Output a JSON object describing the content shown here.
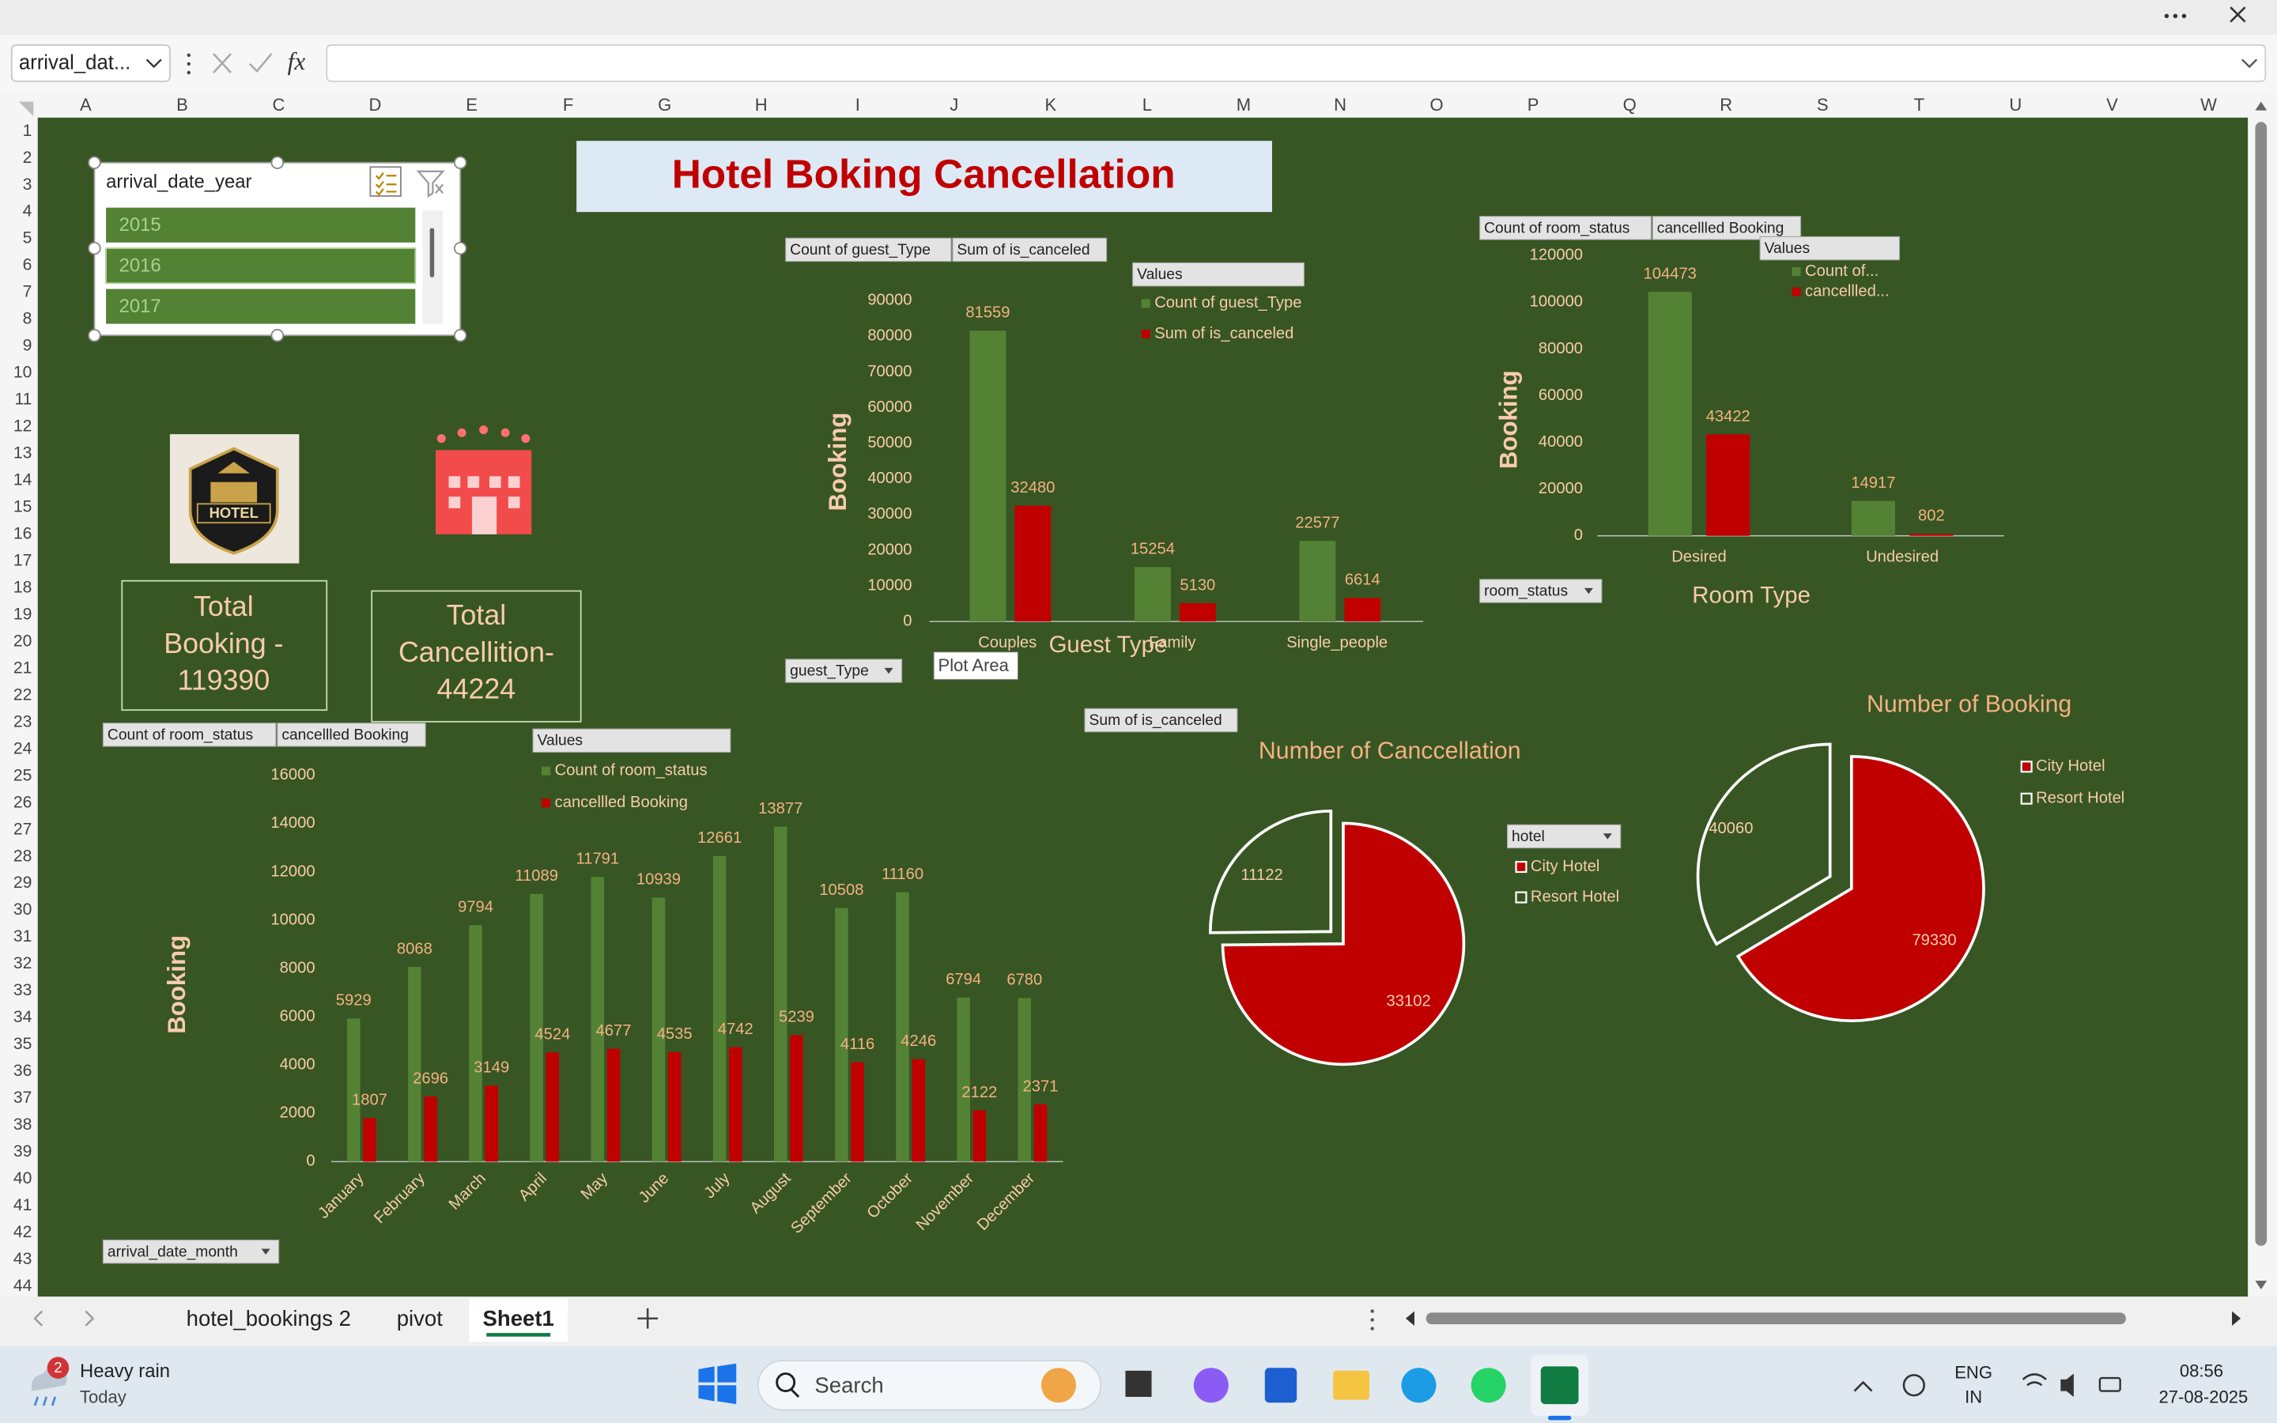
{
  "formula_bar": {
    "name_box": "arrival_dat...",
    "function_label": "fx"
  },
  "columns": [
    "A",
    "B",
    "C",
    "D",
    "E",
    "F",
    "G",
    "H",
    "I",
    "J",
    "K",
    "L",
    "M",
    "N",
    "O",
    "P",
    "Q",
    "R",
    "S",
    "T",
    "U",
    "V",
    "W"
  ],
  "rows": [
    1,
    2,
    3,
    4,
    5,
    6,
    7,
    8,
    9,
    10,
    11,
    12,
    13,
    14,
    15,
    16,
    17,
    18,
    19,
    20,
    21,
    22,
    23,
    24,
    25,
    26,
    27,
    28,
    29,
    30,
    31,
    32,
    33,
    34,
    35,
    36,
    37,
    38,
    39,
    40,
    41,
    42,
    43,
    44
  ],
  "slicer": {
    "title": "arrival_date_year",
    "items": [
      "2015",
      "2016",
      "2017"
    ]
  },
  "title": "Hotel Boking Cancellation",
  "logo_text": "HOTEL",
  "kpis": [
    {
      "lines": [
        "Total",
        "Booking -",
        "119390"
      ]
    },
    {
      "lines": [
        "Total",
        "Cancellition-",
        "44224"
      ]
    }
  ],
  "charts": [
    {
      "type": "bar",
      "field_buttons": [
        "Count of guest_Type",
        "Sum of is_canceled"
      ],
      "legend_title": "Values",
      "filter_button": "guest_Type",
      "tooltip": "Plot Area",
      "y_label": "Booking",
      "x_label": "Guest Type",
      "categories": [
        "Couples",
        "Family",
        "Single_people"
      ],
      "series": [
        {
          "name": "Count of guest_Type",
          "color": "#548235",
          "values": [
            81559,
            15254,
            22577
          ]
        },
        {
          "name": "Sum of is_canceled",
          "color": "#c00000",
          "values": [
            32480,
            5130,
            6614
          ]
        }
      ],
      "ylim": [
        0,
        90000
      ],
      "yticks": [
        0,
        10000,
        20000,
        30000,
        40000,
        50000,
        60000,
        70000,
        80000,
        90000
      ]
    },
    {
      "type": "bar",
      "field_buttons": [
        "Count of room_status",
        "cancellled Booking"
      ],
      "legend_title": "Values",
      "filter_button": "room_status",
      "y_label": "Booking",
      "x_label": "Room Type",
      "categories": [
        "Desired",
        "Undesired"
      ],
      "series": [
        {
          "name": "Count of...",
          "color": "#548235",
          "values": [
            104473,
            14917
          ]
        },
        {
          "name": "cancellled...",
          "color": "#c00000",
          "values": [
            43422,
            802
          ]
        }
      ],
      "ylim": [
        0,
        120000
      ],
      "yticks": [
        0,
        20000,
        40000,
        60000,
        80000,
        100000,
        120000
      ]
    },
    {
      "type": "bar",
      "field_buttons": [
        "Count of room_status",
        "cancellled Booking"
      ],
      "legend_title": "Values",
      "filter_button": "arrival_date_month",
      "y_label": "Booking",
      "categories": [
        "January",
        "February",
        "March",
        "April",
        "May",
        "June",
        "July",
        "August",
        "September",
        "October",
        "November",
        "December"
      ],
      "series": [
        {
          "name": "Count of room_status",
          "color": "#548235",
          "values": [
            5929,
            8068,
            9794,
            11089,
            11791,
            10939,
            12661,
            13877,
            10508,
            11160,
            6794,
            6780
          ]
        },
        {
          "name": "cancellled Booking",
          "color": "#c00000",
          "values": [
            1807,
            2696,
            3149,
            4524,
            4677,
            4535,
            4742,
            5239,
            4116,
            4246,
            2122,
            2371
          ]
        }
      ],
      "ylim": [
        0,
        16000
      ],
      "yticks": [
        0,
        2000,
        4000,
        6000,
        8000,
        10000,
        12000,
        14000,
        16000
      ]
    },
    {
      "type": "pie",
      "field_button": "Sum of is_canceled",
      "title": "Number of Canccellation",
      "filter_button": "hotel",
      "categories": [
        "City Hotel",
        "Resort Hotel"
      ],
      "values": [
        33102,
        11122
      ],
      "colors": [
        "#c00000",
        "#375623"
      ]
    },
    {
      "type": "pie",
      "title": "Number of Booking",
      "categories": [
        "City Hotel",
        "Resort Hotel"
      ],
      "values": [
        79330,
        40060
      ],
      "colors": [
        "#c00000",
        "#375623"
      ]
    }
  ],
  "sheet_tabs": {
    "tabs": [
      "hotel_bookings 2",
      "pivot",
      "Sheet1"
    ],
    "active": 2
  },
  "taskbar": {
    "badge": "2",
    "weather": "Heavy rain",
    "weather_sub": "Today",
    "search": "Search",
    "lang": [
      "ENG",
      "IN"
    ],
    "time": "08:56",
    "date": "27-08-2025"
  }
}
